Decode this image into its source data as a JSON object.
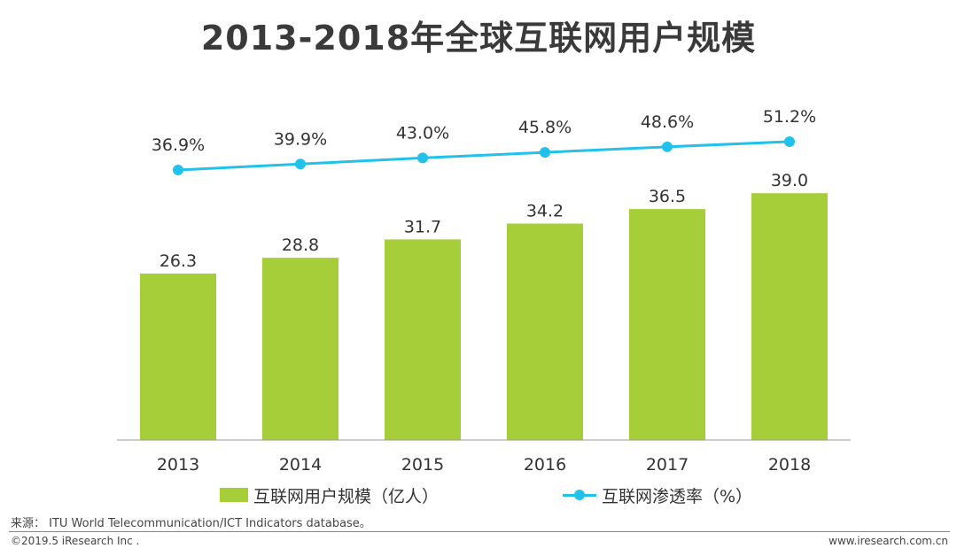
{
  "title": "2013-2018年全球互联网用户规模",
  "chart_data": {
    "type": "bar",
    "title": "2013-2018年全球互联网用户规模",
    "categories": [
      "2013",
      "2014",
      "2015",
      "2016",
      "2017",
      "2018"
    ],
    "series": [
      {
        "name": "互联网用户规模（亿人）",
        "type": "bar",
        "values": [
          26.3,
          28.8,
          31.7,
          34.2,
          36.5,
          39.0
        ],
        "labels": [
          "26.3",
          "28.8",
          "31.7",
          "34.2",
          "36.5",
          "39.0"
        ],
        "color": "#a6ce39"
      },
      {
        "name": "互联网渗透率（%）",
        "type": "line",
        "values": [
          36.9,
          39.9,
          43.0,
          45.8,
          48.6,
          51.2
        ],
        "labels": [
          "36.9%",
          "39.9%",
          "43.0%",
          "45.8%",
          "48.6%",
          "51.2%"
        ],
        "color": "#22c1ec"
      }
    ],
    "ylim_bar": [
      0,
      54
    ],
    "ylim_line": [
      0,
      100
    ],
    "grid": false,
    "legend_position": "bottom"
  },
  "legend": {
    "bar_label": "互联网用户规模（亿人）",
    "line_label": "互联网渗透率（%）"
  },
  "footer": {
    "source": "来源： ITU World Telecommunication/ICT Indicators database。",
    "copyright": "©2019.5 iResearch Inc .",
    "website": "www.iresearch.com.cn"
  }
}
